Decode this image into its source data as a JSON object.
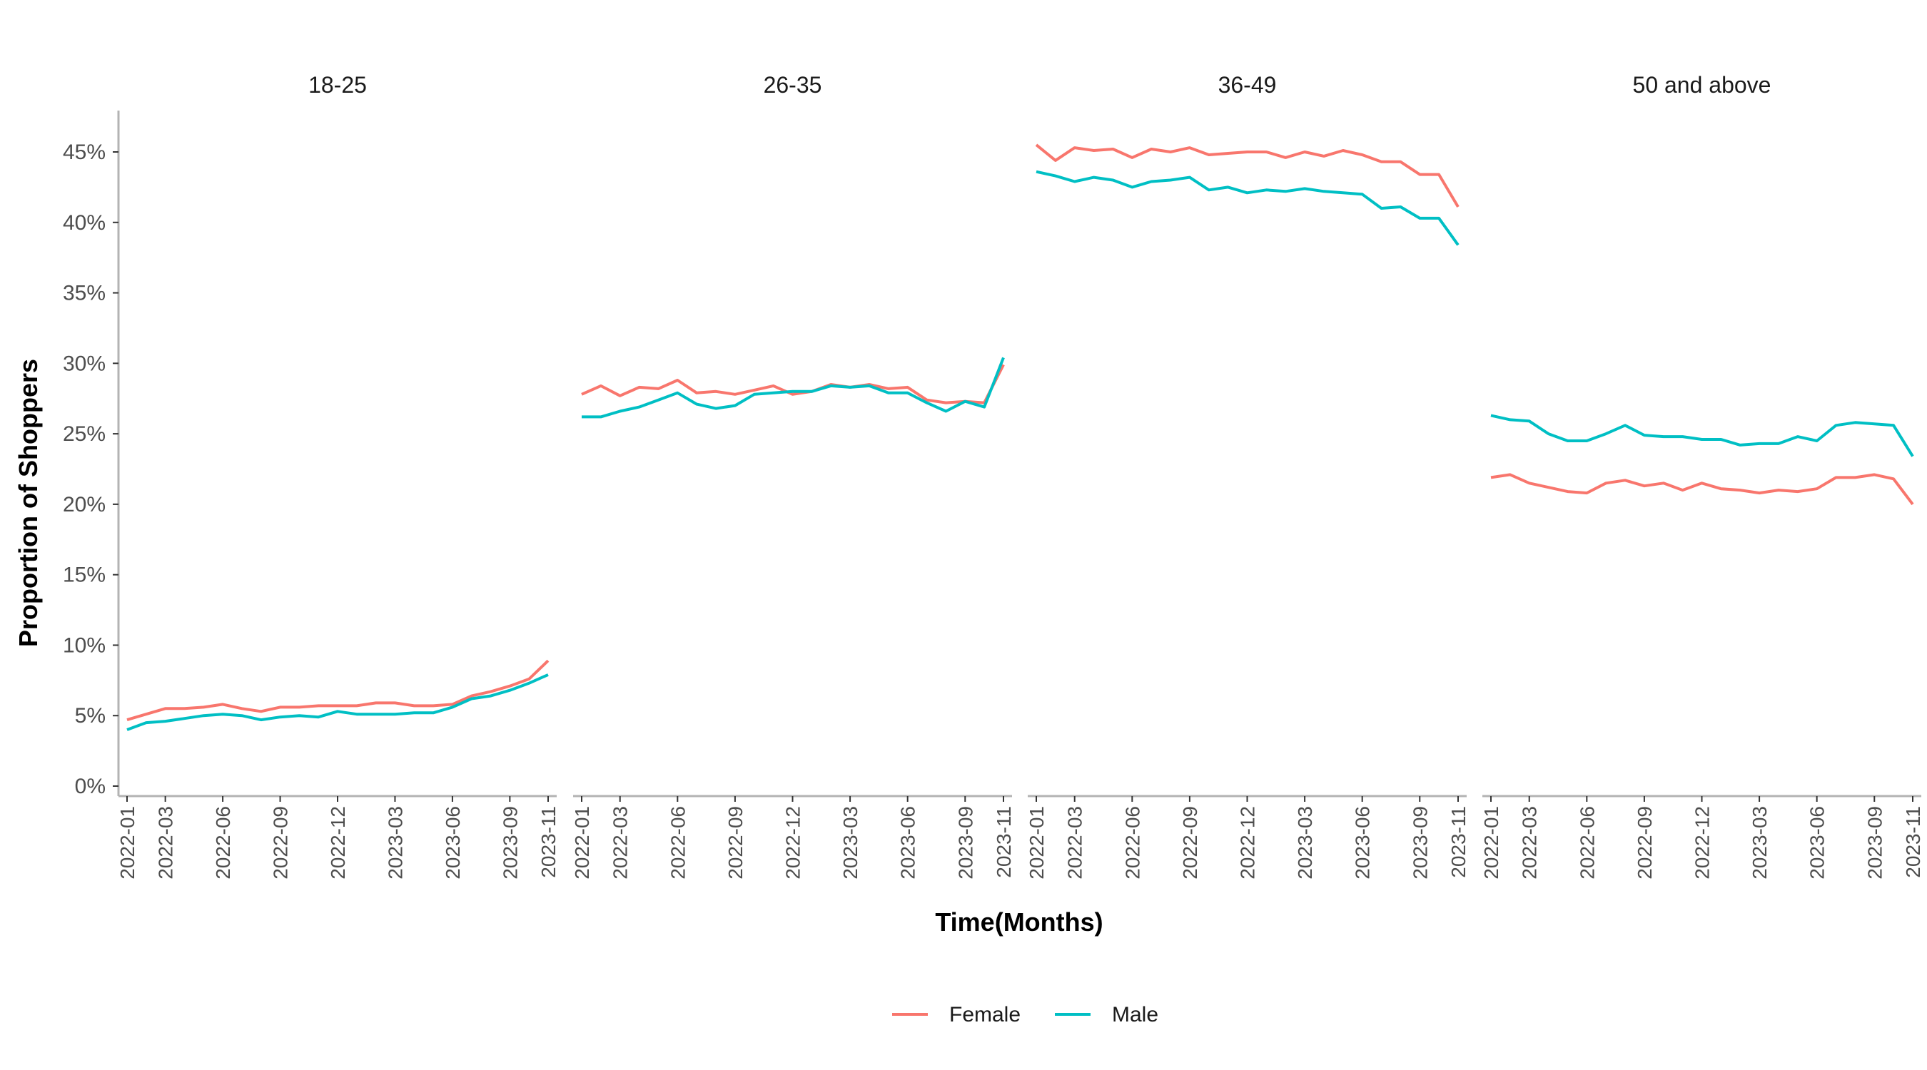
{
  "chart_data": {
    "type": "line",
    "xlabel": "Time(Months)",
    "ylabel": "Proportion of Shoppers",
    "ylim": [
      0,
      0.47
    ],
    "y_ticks": [
      0,
      0.05,
      0.1,
      0.15,
      0.2,
      0.25,
      0.3,
      0.35,
      0.4,
      0.45
    ],
    "y_tick_labels": [
      "0%",
      "5%",
      "10%",
      "15%",
      "20%",
      "25%",
      "30%",
      "35%",
      "40%",
      "45%"
    ],
    "x_tick_labels": [
      "2022-01",
      "2022-03",
      "2022-06",
      "2022-09",
      "2022-12",
      "2023-03",
      "2023-06",
      "2023-09",
      "2023-11"
    ],
    "x": [
      "2022-01",
      "2022-02",
      "2022-03",
      "2022-04",
      "2022-05",
      "2022-06",
      "2022-07",
      "2022-08",
      "2022-09",
      "2022-10",
      "2022-11",
      "2022-12",
      "2023-01",
      "2023-02",
      "2023-03",
      "2023-04",
      "2023-05",
      "2023-06",
      "2023-07",
      "2023-08",
      "2023-09",
      "2023-10",
      "2023-11"
    ],
    "legend": {
      "position": "bottom",
      "entries": [
        "Female",
        "Male"
      ]
    },
    "colors": {
      "Female": "#F8766D",
      "Male": "#00BFC4"
    },
    "facets": [
      {
        "title": "18-25",
        "series": [
          {
            "name": "Female",
            "values": [
              0.047,
              0.051,
              0.055,
              0.055,
              0.056,
              0.058,
              0.055,
              0.053,
              0.056,
              0.056,
              0.057,
              0.057,
              0.057,
              0.059,
              0.059,
              0.057,
              0.057,
              0.058,
              0.064,
              0.067,
              0.071,
              0.076,
              0.089
            ]
          },
          {
            "name": "Male",
            "values": [
              0.04,
              0.045,
              0.046,
              0.048,
              0.05,
              0.051,
              0.05,
              0.047,
              0.049,
              0.05,
              0.049,
              0.053,
              0.051,
              0.051,
              0.051,
              0.052,
              0.052,
              0.056,
              0.062,
              0.064,
              0.068,
              0.073,
              0.079
            ]
          }
        ]
      },
      {
        "title": "26-35",
        "series": [
          {
            "name": "Female",
            "values": [
              0.278,
              0.284,
              0.277,
              0.283,
              0.282,
              0.288,
              0.279,
              0.28,
              0.278,
              0.281,
              0.284,
              0.278,
              0.28,
              0.285,
              0.283,
              0.285,
              0.282,
              0.283,
              0.274,
              0.272,
              0.273,
              0.272,
              0.299
            ]
          },
          {
            "name": "Male",
            "values": [
              0.262,
              0.262,
              0.266,
              0.269,
              0.274,
              0.279,
              0.271,
              0.268,
              0.27,
              0.278,
              0.279,
              0.28,
              0.28,
              0.284,
              0.283,
              0.284,
              0.279,
              0.279,
              0.272,
              0.266,
              0.273,
              0.269,
              0.304
            ]
          }
        ]
      },
      {
        "title": "36-49",
        "series": [
          {
            "name": "Female",
            "values": [
              0.455,
              0.444,
              0.453,
              0.451,
              0.452,
              0.446,
              0.452,
              0.45,
              0.453,
              0.448,
              0.449,
              0.45,
              0.45,
              0.446,
              0.45,
              0.447,
              0.451,
              0.448,
              0.443,
              0.443,
              0.434,
              0.434,
              0.411
            ]
          },
          {
            "name": "Male",
            "values": [
              0.436,
              0.433,
              0.429,
              0.432,
              0.43,
              0.425,
              0.429,
              0.43,
              0.432,
              0.423,
              0.425,
              0.421,
              0.423,
              0.422,
              0.424,
              0.422,
              0.421,
              0.42,
              0.41,
              0.411,
              0.403,
              0.403,
              0.384
            ]
          }
        ]
      },
      {
        "title": "50 and above",
        "series": [
          {
            "name": "Female",
            "values": [
              0.219,
              0.221,
              0.215,
              0.212,
              0.209,
              0.208,
              0.215,
              0.217,
              0.213,
              0.215,
              0.21,
              0.215,
              0.211,
              0.21,
              0.208,
              0.21,
              0.209,
              0.211,
              0.219,
              0.219,
              0.221,
              0.218,
              0.2
            ]
          },
          {
            "name": "Male",
            "values": [
              0.263,
              0.26,
              0.259,
              0.25,
              0.245,
              0.245,
              0.25,
              0.256,
              0.249,
              0.248,
              0.248,
              0.246,
              0.246,
              0.242,
              0.243,
              0.243,
              0.248,
              0.245,
              0.256,
              0.258,
              0.257,
              0.256,
              0.234
            ]
          }
        ]
      }
    ]
  }
}
